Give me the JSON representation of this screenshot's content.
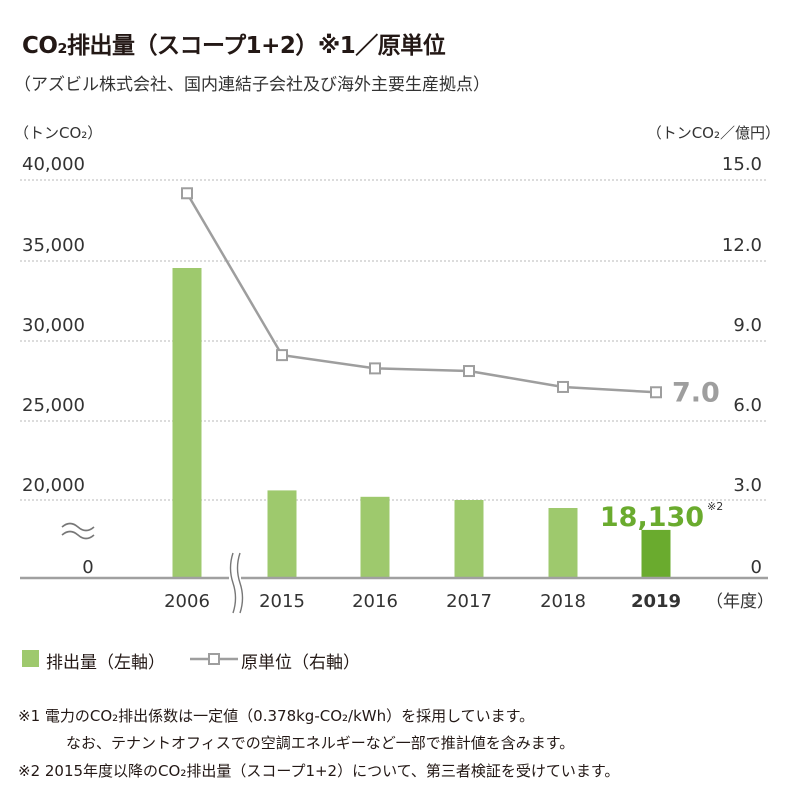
{
  "header": {
    "title": "CO₂排出量（スコープ1+2）※1／原単位",
    "subtitle": "（アズビル株式会社、国内連結子会社及び海外主要生産拠点）"
  },
  "axes": {
    "left_unit": "（トンCO₂）",
    "right_unit": "（トンCO₂／億円）",
    "x_unit": "（年度）"
  },
  "legend": {
    "bar_label": "排出量（左軸）",
    "line_label": "原単位（右軸）"
  },
  "notes": {
    "note1_line1": "※1  電力のCO₂排出係数は一定値（0.378kg-CO₂/kWh）を採用しています。",
    "note1_line2": "なお、テナントオフィスでの空調エネルギーなど一部で推計値を含みます。",
    "note2": "※2  2015年度以降のCO₂排出量（スコープ1+2）について、第三者検証を受けています。"
  },
  "colors": {
    "bar": "#9ec96d",
    "bar_highlight": "#6aab2e",
    "line": "#9e9e9e",
    "grid": "#c8c8c8",
    "axis": "#a0a0a0"
  },
  "chart_data": {
    "type": "bar",
    "categories": [
      "2006",
      "2015",
      "2016",
      "2017",
      "2018",
      "2019"
    ],
    "series": [
      {
        "name": "排出量（左軸）",
        "axis": "left",
        "type": "bar",
        "values": [
          34500,
          20600,
          20200,
          20000,
          19500,
          18130
        ]
      },
      {
        "name": "原単位（右軸）",
        "axis": "right",
        "type": "line",
        "values": [
          14.5,
          8.4,
          7.9,
          7.8,
          7.2,
          7.0
        ]
      }
    ],
    "left_ticks": [
      "40,000",
      "35,000",
      "30,000",
      "25,000",
      "20,000",
      "0"
    ],
    "right_ticks": [
      "15.0",
      "12.0",
      "9.0",
      "6.0",
      "3.0",
      "0"
    ],
    "left_axis": {
      "broken": true,
      "upper_range": [
        20000,
        40000
      ]
    },
    "right_axis": {
      "range": [
        0,
        15
      ]
    },
    "highlight_category": "2019",
    "annotations": {
      "last_bar_value": "18,130",
      "last_bar_note": "※2",
      "last_line_value": "7.0"
    },
    "grid": true
  }
}
